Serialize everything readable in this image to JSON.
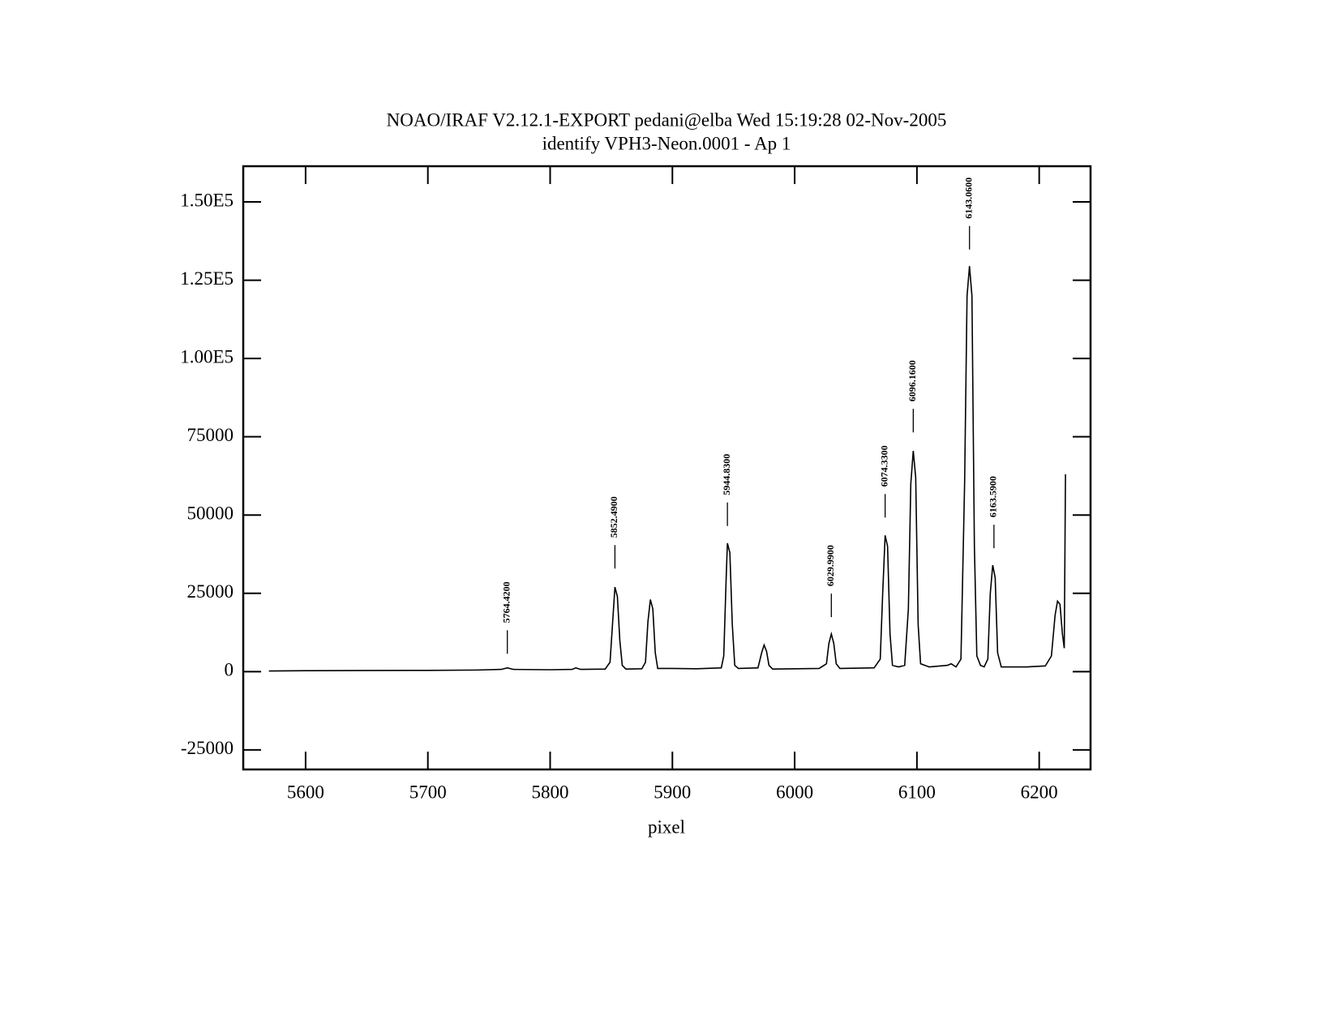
{
  "chart_data": {
    "type": "line",
    "title": "NOAO/IRAF V2.12.1-EXPORT pedani@elba Wed 15:19:28 02-Nov-2005",
    "subtitle": "identify VPH3-Neon.0001 - Ap 1",
    "x_label": "pixel",
    "color": "#000000",
    "xlim": [
      5549,
      6242
    ],
    "ylim": [
      -31250,
      161400
    ],
    "xticks": [
      5600,
      5700,
      5800,
      5900,
      6000,
      6100,
      6200
    ],
    "yticks": [
      -25000,
      0,
      25000,
      50000,
      75000,
      {
        "value": 100000,
        "label": "1.00E5"
      },
      {
        "value": 125000,
        "label": "1.25E5"
      },
      {
        "value": 150000,
        "label": "1.50E5"
      }
    ],
    "x": [
      5570,
      5600,
      5650,
      5700,
      5740,
      5760,
      5765,
      5770,
      5800,
      5818,
      5821,
      5825,
      5845,
      5849,
      5851,
      5853,
      5855,
      5857,
      5859,
      5862,
      5875,
      5878,
      5880,
      5882,
      5884,
      5886,
      5888,
      5900,
      5920,
      5940,
      5942,
      5944,
      5945,
      5947,
      5949,
      5951,
      5954,
      5970,
      5973,
      5975,
      5977,
      5979,
      5982,
      6020,
      6026,
      6028,
      6030,
      6032,
      6034,
      6037,
      6065,
      6070,
      6072,
      6074,
      6076,
      6078,
      6080,
      6085,
      6090,
      6093,
      6095,
      6097,
      6099,
      6101,
      6103,
      6110,
      6125,
      6128,
      6132,
      6136,
      6139,
      6141,
      6143,
      6145,
      6147,
      6149,
      6152,
      6155,
      6158,
      6160,
      6162,
      6164,
      6166,
      6169,
      6190,
      6205,
      6210,
      6213,
      6215,
      6217,
      6219,
      6220.5,
      6221.5
    ],
    "values": [
      200,
      300,
      350,
      400,
      500,
      700,
      1200,
      700,
      600,
      700,
      1200,
      700,
      800,
      3000,
      15000,
      27000,
      24000,
      10000,
      2000,
      800,
      900,
      3000,
      16000,
      23000,
      20000,
      6000,
      1000,
      1000,
      900,
      1200,
      5000,
      30000,
      41000,
      38000,
      15000,
      2000,
      1000,
      1200,
      6000,
      8500,
      6500,
      2000,
      800,
      1000,
      2500,
      9000,
      12000,
      9000,
      2500,
      1000,
      1200,
      4000,
      25000,
      43500,
      40000,
      12000,
      2000,
      1500,
      2000,
      20000,
      60000,
      70500,
      62000,
      15000,
      2500,
      1500,
      2000,
      2500,
      1500,
      4000,
      60000,
      120000,
      129500,
      120000,
      40000,
      5000,
      2000,
      1500,
      4000,
      25000,
      34000,
      30000,
      6000,
      1500,
      1500,
      1800,
      5000,
      18000,
      22500,
      21500,
      12000,
      7500,
      63000
    ],
    "annotations": [
      {
        "x": 5765,
        "y": 5700,
        "label": "5764.4200"
      },
      {
        "x": 5853,
        "y": 32900,
        "label": "5852.4900"
      },
      {
        "x": 5945,
        "y": 46500,
        "label": "5944.8300"
      },
      {
        "x": 6030,
        "y": 17400,
        "label": "6029.9900"
      },
      {
        "x": 6074,
        "y": 49200,
        "label": "6074.3300"
      },
      {
        "x": 6097,
        "y": 76400,
        "label": "6096.1600"
      },
      {
        "x": 6143,
        "y": 134800,
        "label": "6143.0600"
      },
      {
        "x": 6163,
        "y": 39400,
        "label": "6163.5900"
      }
    ]
  }
}
